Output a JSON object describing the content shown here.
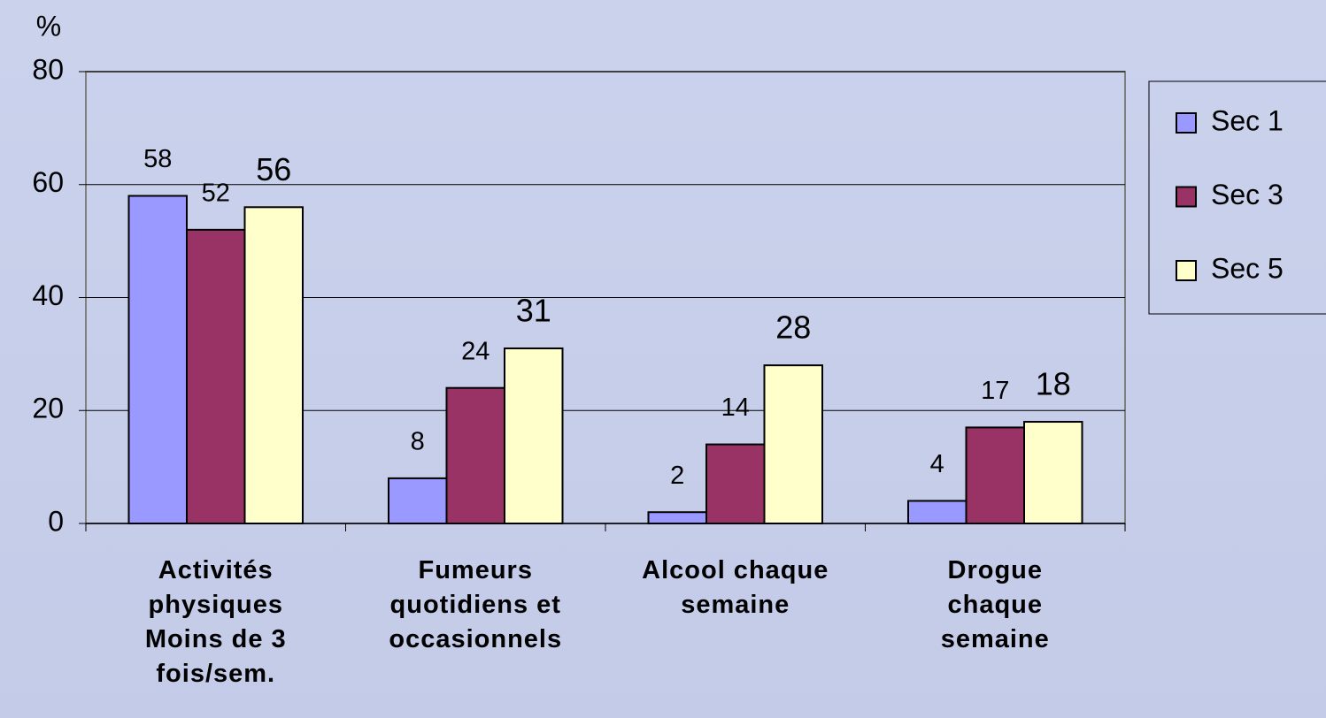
{
  "chart_data": {
    "type": "bar",
    "y_label": "%",
    "categories": [
      "Activités physiques Moins de  3 fois/sem.",
      "Fumeurs quotidiens et occasionnels",
      "Alcool chaque semaine",
      "Drogue chaque semaine"
    ],
    "series": [
      {
        "name": "Sec 1",
        "color": "#9999ff",
        "values": [
          58,
          8,
          2,
          4
        ]
      },
      {
        "name": "Sec 3",
        "color": "#993366",
        "values": [
          52,
          24,
          14,
          17
        ]
      },
      {
        "name": "Sec 5",
        "color": "#ffffcc",
        "values": [
          56,
          31,
          28,
          18
        ]
      }
    ],
    "ylim": [
      0,
      80
    ],
    "yticks": [
      0,
      20,
      40,
      60,
      80
    ],
    "grid": true,
    "legend": "right"
  }
}
